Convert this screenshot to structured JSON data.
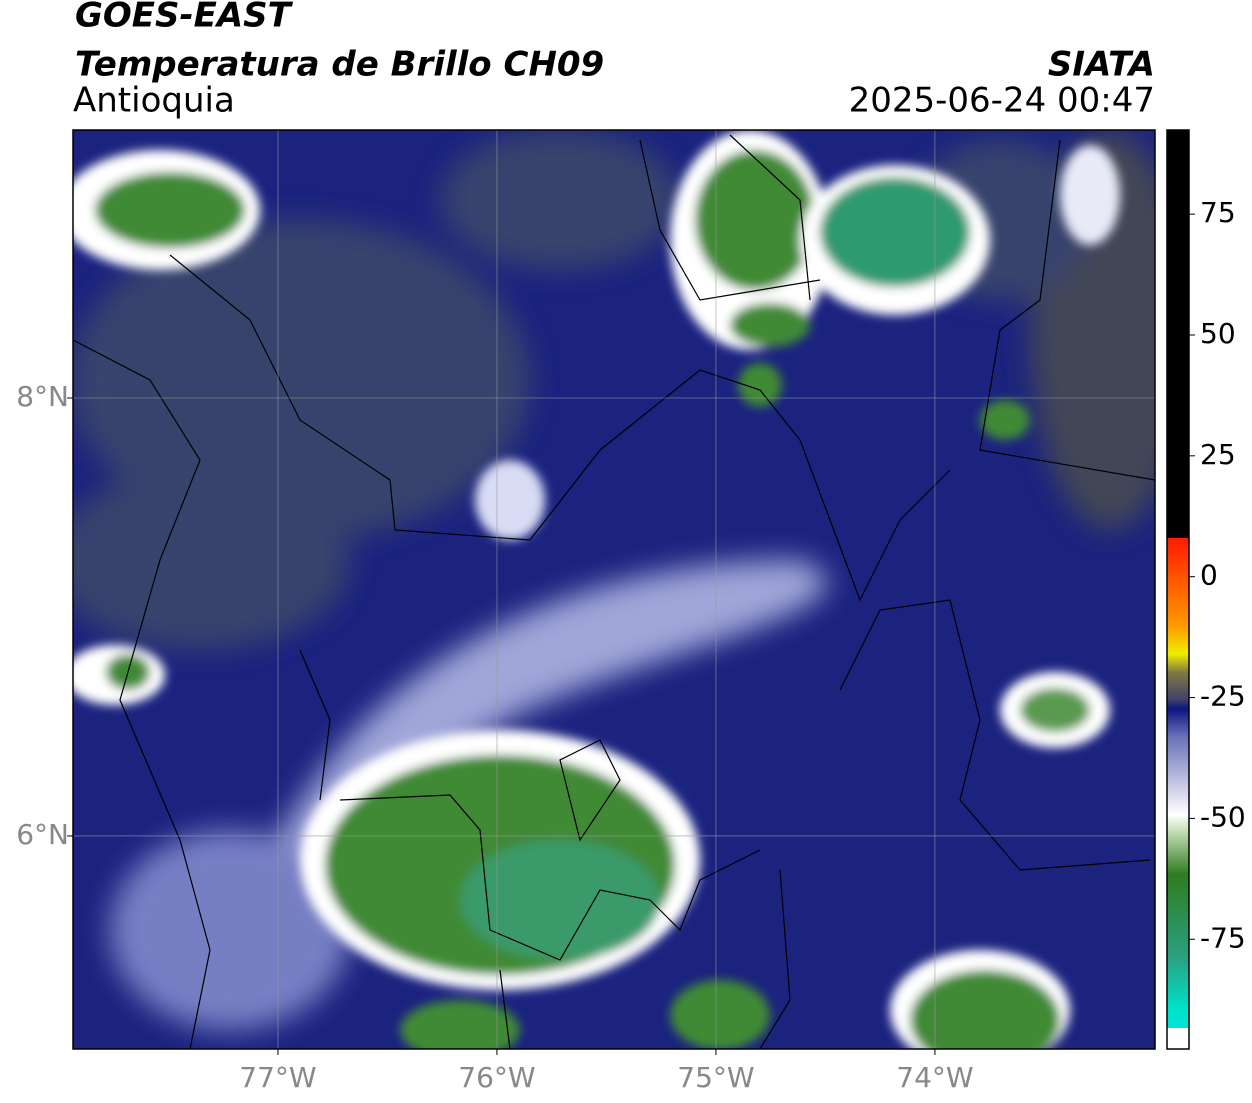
{
  "header": {
    "title": "GOES-EAST",
    "subtitle": "Temperatura de Brillo CH09",
    "region": "Antioquia",
    "source": "SIATA",
    "datetime": "2025-06-24 00:47"
  },
  "map": {
    "xlim": [
      -77.936,
      -72.995
    ],
    "ylim": [
      5.027,
      9.224
    ],
    "xticks": [
      {
        "value": -77,
        "label": "77°W"
      },
      {
        "value": -76,
        "label": "76°W"
      },
      {
        "value": -75,
        "label": "75°W"
      },
      {
        "value": -74,
        "label": "74°W"
      }
    ],
    "yticks": [
      {
        "value": 6,
        "label": "6°N"
      },
      {
        "value": 8,
        "label": "8°N"
      }
    ],
    "grid": true
  },
  "colorbar": {
    "lim": [
      -97.7,
      92.4
    ],
    "ticks": [
      75,
      50,
      25,
      0,
      -25,
      -50,
      -75
    ]
  }
}
